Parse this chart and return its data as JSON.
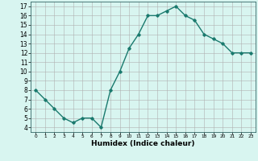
{
  "x": [
    0,
    1,
    2,
    3,
    4,
    5,
    6,
    7,
    8,
    9,
    10,
    11,
    12,
    13,
    14,
    15,
    16,
    17,
    18,
    19,
    20,
    21,
    22,
    23
  ],
  "y": [
    8,
    7,
    6,
    5,
    4.5,
    5,
    5,
    4,
    8,
    10,
    12.5,
    14,
    16,
    16,
    16.5,
    17,
    16,
    15.5,
    14,
    13.5,
    13,
    12,
    12,
    12
  ],
  "line_color": "#1a7a6e",
  "marker": "D",
  "marker_size": 1.8,
  "bg_color": "#d8f5f0",
  "grid_color": "#b0b0b0",
  "xlabel": "Humidex (Indice chaleur)",
  "xlabel_fontsize": 6.5,
  "ylabel_ticks": [
    4,
    5,
    6,
    7,
    8,
    9,
    10,
    11,
    12,
    13,
    14,
    15,
    16,
    17
  ],
  "xlim": [
    -0.5,
    23.5
  ],
  "ylim": [
    3.5,
    17.5
  ],
  "xtick_labels": [
    "0",
    "1",
    "2",
    "3",
    "4",
    "5",
    "6",
    "7",
    "8",
    "9",
    "10",
    "11",
    "12",
    "13",
    "14",
    "15",
    "16",
    "17",
    "18",
    "19",
    "20",
    "21",
    "22",
    "23"
  ],
  "linewidth": 1.0,
  "tick_fontsize": 5.5,
  "xtick_fontsize": 4.2
}
